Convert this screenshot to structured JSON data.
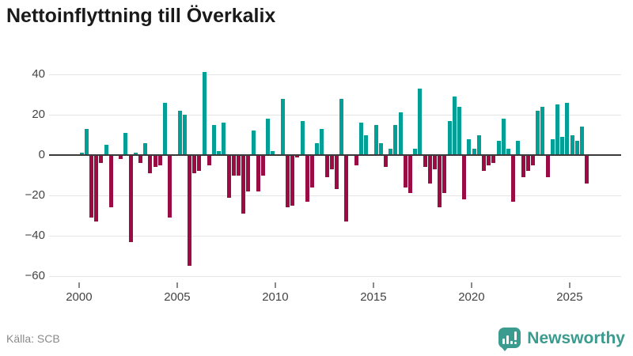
{
  "title": "Nettoinflyttning till Överkalix",
  "source": "Källa: SCB",
  "brand": {
    "name": "Newsworthy",
    "color": "#3a9b8e"
  },
  "colors": {
    "positive_bar": "#00a096",
    "negative_bar": "#9b0c45",
    "zero_axis": "#3a3a3a",
    "gridline": "#e4e4e4",
    "axis_text": "#444444",
    "muted_text": "#8a8a8a",
    "title_text": "#1a1a1a"
  },
  "chart_data": {
    "type": "bar",
    "title": "Nettoinflyttning till Överkalix",
    "period": "quarterly",
    "x_start_year": 2000,
    "x_end_year": 2025,
    "x_tick_labels": [
      "2000",
      "2005",
      "2010",
      "2015",
      "2020",
      "2025"
    ],
    "y_tick_values": [
      40,
      20,
      0,
      -20,
      -40,
      -60
    ],
    "y_tick_labels": [
      "40",
      "20",
      "0",
      "−20",
      "−40",
      "−60"
    ],
    "ylim": [
      -60,
      42
    ],
    "grid": true,
    "legend": false,
    "values": [
      1,
      13,
      -31,
      -33,
      -4,
      5,
      -26,
      0,
      -2,
      11,
      -43,
      1,
      -4,
      6,
      -9,
      -6,
      -5,
      26,
      -31,
      0,
      22,
      20,
      -55,
      -9,
      -8,
      41,
      -5,
      15,
      2,
      16,
      -21,
      -10,
      -10,
      -29,
      -18,
      12,
      -18,
      -10,
      18,
      2,
      0,
      28,
      -26,
      -25,
      -1,
      17,
      -23,
      -16,
      6,
      13,
      -11,
      -7,
      -17,
      28,
      -33,
      0,
      -5,
      16,
      10,
      0,
      15,
      6,
      -6,
      3,
      15,
      21,
      -16,
      -19,
      3,
      33,
      -6,
      -14,
      -7,
      -26,
      -19,
      17,
      29,
      24,
      -22,
      8,
      3,
      10,
      -8,
      -5,
      -4,
      7,
      18,
      3,
      -23,
      7,
      -11,
      -8,
      -5,
      22,
      24,
      -11,
      8,
      25,
      9,
      26,
      10,
      7,
      14,
      -14
    ]
  }
}
